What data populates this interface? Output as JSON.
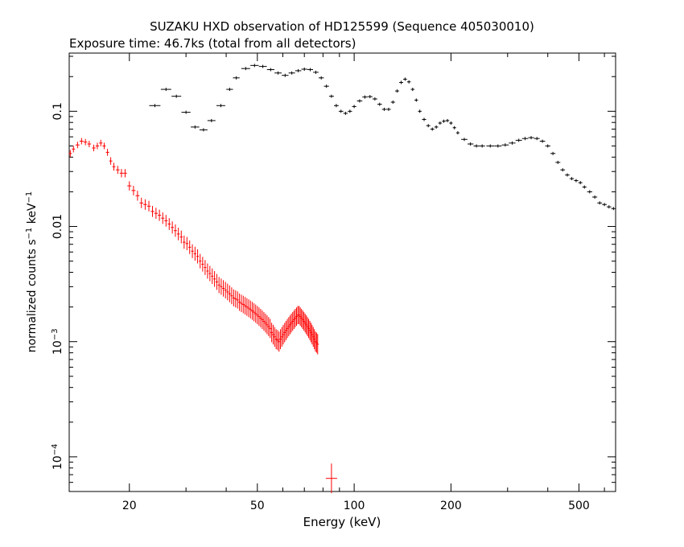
{
  "chart_data": {
    "type": "scatter",
    "title": "SUZAKU HXD observation of HD125599 (Sequence 405030010)",
    "subtitle": "Exposure time: 46.7ks (total from all detectors)",
    "xlabel": "Energy (keV)",
    "ylabel": {
      "base": "normalized counts s",
      "exp1": "−1",
      "mid": " keV",
      "exp2": "−1"
    },
    "xscale": "log",
    "yscale": "log",
    "xlim": [
      13,
      650
    ],
    "ylim": [
      5e-05,
      0.32
    ],
    "x_ticks": [
      {
        "value": 20,
        "label": "20"
      },
      {
        "value": 50,
        "label": "50"
      },
      {
        "value": 100,
        "label": "100"
      },
      {
        "value": 200,
        "label": "200"
      },
      {
        "value": 500,
        "label": "500"
      }
    ],
    "y_ticks": [
      {
        "value": 0.1,
        "base": "0.1",
        "exp": ""
      },
      {
        "value": 0.01,
        "base": "0.01",
        "exp": ""
      },
      {
        "value": 0.001,
        "base": "10",
        "exp": "−3"
      },
      {
        "value": 0.0001,
        "base": "10",
        "exp": "−4"
      }
    ],
    "grid": false,
    "series": [
      {
        "color": "#000000",
        "style": "crosses-with-errorbars",
        "points": [
          [
            24,
            0.112
          ],
          [
            26,
            0.155
          ],
          [
            28,
            0.135
          ],
          [
            30,
            0.098
          ],
          [
            32,
            0.073
          ],
          [
            34,
            0.069
          ],
          [
            36,
            0.083
          ],
          [
            38.5,
            0.112
          ],
          [
            41,
            0.155
          ],
          [
            43,
            0.195
          ],
          [
            46,
            0.235
          ],
          [
            49,
            0.25
          ],
          [
            52,
            0.245
          ],
          [
            55,
            0.23
          ],
          [
            58,
            0.215
          ],
          [
            61,
            0.205
          ],
          [
            64,
            0.215
          ],
          [
            67,
            0.225
          ],
          [
            70,
            0.232
          ],
          [
            73,
            0.23
          ],
          [
            76,
            0.218
          ],
          [
            79,
            0.195
          ],
          [
            82,
            0.165
          ],
          [
            85,
            0.135
          ],
          [
            88,
            0.112
          ],
          [
            91,
            0.1
          ],
          [
            94,
            0.096
          ],
          [
            97,
            0.1
          ],
          [
            100,
            0.11
          ],
          [
            104,
            0.123
          ],
          [
            108,
            0.133
          ],
          [
            112,
            0.134
          ],
          [
            116,
            0.128
          ],
          [
            120,
            0.115
          ],
          [
            124,
            0.104
          ],
          [
            128,
            0.104
          ],
          [
            132,
            0.12
          ],
          [
            136,
            0.15
          ],
          [
            140,
            0.178
          ],
          [
            144,
            0.19
          ],
          [
            148,
            0.18
          ],
          [
            152,
            0.155
          ],
          [
            156,
            0.125
          ],
          [
            160,
            0.1
          ],
          [
            165,
            0.085
          ],
          [
            170,
            0.075
          ],
          [
            175,
            0.07
          ],
          [
            180,
            0.073
          ],
          [
            185,
            0.079
          ],
          [
            190,
            0.082
          ],
          [
            195,
            0.083
          ],
          [
            200,
            0.079
          ],
          [
            205,
            0.072
          ],
          [
            210,
            0.065
          ],
          [
            220,
            0.057
          ],
          [
            230,
            0.052
          ],
          [
            240,
            0.05
          ],
          [
            250,
            0.05
          ],
          [
            265,
            0.05
          ],
          [
            280,
            0.05
          ],
          [
            295,
            0.051
          ],
          [
            310,
            0.053
          ],
          [
            325,
            0.056
          ],
          [
            340,
            0.058
          ],
          [
            355,
            0.059
          ],
          [
            370,
            0.058
          ],
          [
            385,
            0.055
          ],
          [
            400,
            0.05
          ],
          [
            415,
            0.043
          ],
          [
            430,
            0.036
          ],
          [
            445,
            0.031
          ],
          [
            460,
            0.028
          ],
          [
            475,
            0.026
          ],
          [
            490,
            0.025
          ],
          [
            505,
            0.024
          ],
          [
            520,
            0.022
          ],
          [
            540,
            0.02
          ],
          [
            560,
            0.018
          ],
          [
            580,
            0.016
          ],
          [
            600,
            0.0155
          ],
          [
            620,
            0.0148
          ],
          [
            640,
            0.0143
          ]
        ]
      },
      {
        "color": "#ff0000",
        "style": "crosses-with-errorbars",
        "points": [
          [
            13.1,
            0.043
          ],
          [
            13.4,
            0.047
          ],
          [
            13.8,
            0.051
          ],
          [
            14.2,
            0.055
          ],
          [
            14.6,
            0.054
          ],
          [
            15.0,
            0.052
          ],
          [
            15.5,
            0.048
          ],
          [
            15.9,
            0.05
          ],
          [
            16.3,
            0.053
          ],
          [
            16.7,
            0.05
          ],
          [
            17.1,
            0.044
          ],
          [
            17.5,
            0.037
          ],
          [
            17.9,
            0.033
          ],
          [
            18.4,
            0.031
          ],
          [
            18.9,
            0.029
          ],
          [
            19.4,
            0.029
          ],
          [
            20.0,
            0.0225
          ],
          [
            20.6,
            0.0205
          ],
          [
            21.2,
            0.0185
          ],
          [
            21.8,
            0.016
          ],
          [
            22.4,
            0.0155
          ],
          [
            23.0,
            0.015
          ],
          [
            23.6,
            0.0135
          ],
          [
            24.2,
            0.013
          ],
          [
            24.8,
            0.0125
          ],
          [
            25.4,
            0.0118
          ],
          [
            26.0,
            0.0112
          ],
          [
            26.6,
            0.0105
          ],
          [
            27.2,
            0.0098
          ],
          [
            27.8,
            0.0092
          ],
          [
            28.4,
            0.0086
          ],
          [
            29.0,
            0.0081
          ],
          [
            29.6,
            0.0073
          ],
          [
            30.2,
            0.0071
          ],
          [
            30.8,
            0.0066
          ],
          [
            31.4,
            0.0061
          ],
          [
            32.0,
            0.0058
          ],
          [
            32.6,
            0.0055
          ],
          [
            33.2,
            0.005
          ],
          [
            33.8,
            0.0047
          ],
          [
            34.4,
            0.0044
          ],
          [
            35.0,
            0.0041
          ],
          [
            35.6,
            0.0039
          ],
          [
            36.2,
            0.0037
          ],
          [
            36.8,
            0.0035
          ],
          [
            37.4,
            0.0033
          ],
          [
            38.0,
            0.0031
          ],
          [
            38.6,
            0.003
          ],
          [
            39.2,
            0.0029
          ],
          [
            39.8,
            0.0028
          ],
          [
            40.4,
            0.0027
          ],
          [
            41.0,
            0.0026
          ],
          [
            41.6,
            0.0025
          ],
          [
            42.2,
            0.0024
          ],
          [
            42.8,
            0.00235
          ],
          [
            43.4,
            0.0023
          ],
          [
            44.0,
            0.0022
          ],
          [
            44.6,
            0.00215
          ],
          [
            45.2,
            0.0021
          ],
          [
            45.8,
            0.00205
          ],
          [
            46.4,
            0.002
          ],
          [
            47.0,
            0.00195
          ],
          [
            47.6,
            0.0019
          ],
          [
            48.2,
            0.00185
          ],
          [
            48.8,
            0.0018
          ],
          [
            49.4,
            0.00175
          ],
          [
            50.0,
            0.0017
          ],
          [
            50.6,
            0.00165
          ],
          [
            51.2,
            0.0016
          ],
          [
            51.8,
            0.00155
          ],
          [
            52.4,
            0.0015
          ],
          [
            53.0,
            0.00145
          ],
          [
            53.6,
            0.0014
          ],
          [
            54.2,
            0.00135
          ],
          [
            54.8,
            0.0013
          ],
          [
            55.4,
            0.0012
          ],
          [
            56.0,
            0.00115
          ],
          [
            56.6,
            0.0011
          ],
          [
            57.2,
            0.00105
          ],
          [
            57.8,
            0.00103
          ],
          [
            58.4,
            0.001
          ],
          [
            59.0,
            0.00105
          ],
          [
            59.6,
            0.0011
          ],
          [
            60.2,
            0.00115
          ],
          [
            60.8,
            0.0012
          ],
          [
            61.4,
            0.00125
          ],
          [
            62.0,
            0.0013
          ],
          [
            62.6,
            0.00135
          ],
          [
            63.2,
            0.0014
          ],
          [
            63.8,
            0.00145
          ],
          [
            64.4,
            0.0015
          ],
          [
            65.0,
            0.00155
          ],
          [
            65.6,
            0.0016
          ],
          [
            66.2,
            0.00165
          ],
          [
            66.8,
            0.0017
          ],
          [
            67.4,
            0.0017
          ],
          [
            68.0,
            0.00165
          ],
          [
            68.6,
            0.0016
          ],
          [
            69.2,
            0.00155
          ],
          [
            69.8,
            0.0015
          ],
          [
            70.4,
            0.00145
          ],
          [
            71.0,
            0.0014
          ],
          [
            71.6,
            0.00135
          ],
          [
            72.2,
            0.0013
          ],
          [
            72.8,
            0.00125
          ],
          [
            73.4,
            0.0012
          ],
          [
            74.0,
            0.00115
          ],
          [
            74.6,
            0.0011
          ],
          [
            75.2,
            0.00105
          ],
          [
            75.8,
            0.001
          ],
          [
            76.4,
            0.00098
          ],
          [
            77.0,
            0.00095
          ],
          [
            85.0,
            6.5e-05
          ]
        ]
      }
    ]
  }
}
